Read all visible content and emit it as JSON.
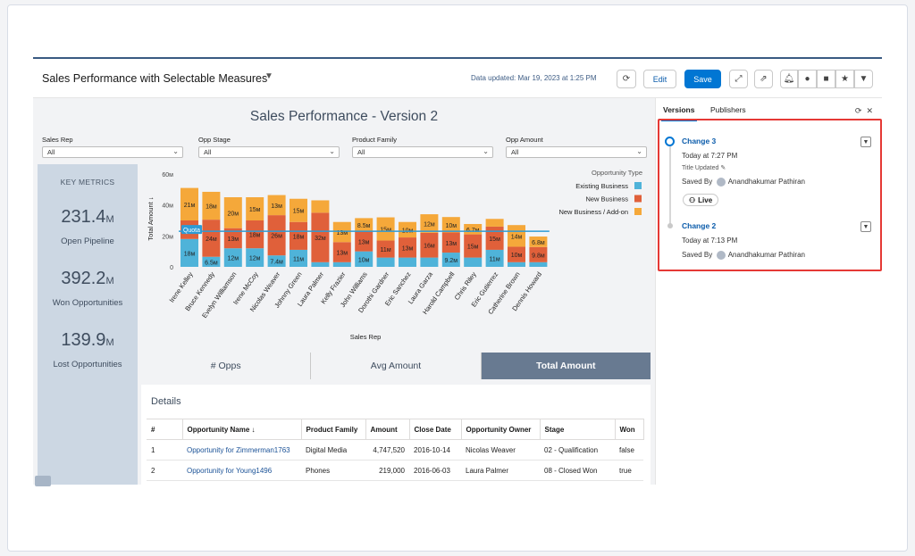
{
  "header": {
    "title": "Sales Performance with Selectable Measures",
    "updated": "Data updated: Mar 19, 2023 at 1:25 PM",
    "edit_label": "Edit",
    "save_label": "Save"
  },
  "dashboard": {
    "title": "Sales Performance - Version 2",
    "filters": [
      {
        "label": "Sales Rep",
        "value": "All"
      },
      {
        "label": "Opp Stage",
        "value": "All"
      },
      {
        "label": "Product Family",
        "value": "All"
      },
      {
        "label": "Opp Amount",
        "value": "All"
      }
    ],
    "metrics": {
      "heading": "KEY METRICS",
      "items": [
        {
          "value": "231.4",
          "unit": "M",
          "label": "Open Pipeline"
        },
        {
          "value": "392.2",
          "unit": "M",
          "label": "Won Opportunities"
        },
        {
          "value": "139.9",
          "unit": "M",
          "label": "Lost Opportunities"
        }
      ]
    },
    "tabs": [
      "# Opps",
      "Avg Amount",
      "Total Amount"
    ],
    "details": {
      "heading": "Details",
      "columns": [
        "#",
        "Opportunity Name ↓",
        "Product Family",
        "Amount",
        "Close Date",
        "Opportunity Owner",
        "Stage",
        "Won"
      ],
      "rows": [
        [
          "1",
          "Opportunity for Zimmerman1763",
          "Digital Media",
          "4,747,520",
          "2016-10-14",
          "Nicolas Weaver",
          "02 - Qualification",
          "false"
        ],
        [
          "2",
          "Opportunity for Young1496",
          "Phones",
          "219,000",
          "2016-06-03",
          "Laura Palmer",
          "08 - Closed Won",
          "true"
        ]
      ]
    }
  },
  "chart_data": {
    "type": "bar",
    "stacked": true,
    "ylabel": "Total Amount ↓",
    "xlabel": "Sales Rep",
    "ylim": [
      0,
      60
    ],
    "yticks": [
      "0",
      "20м",
      "40м",
      "60м"
    ],
    "legend_title": "Opportunity Type",
    "legend_position": "top-right",
    "quota_label": "Quota",
    "quota_value": 23,
    "categories": [
      "Irene Kelley",
      "Bruce Kennedy",
      "Evelyn Williamson",
      "Irene McCoy",
      "Nicolas Weaver",
      "Johnny Green",
      "Laura Palmer",
      "Kelly Frazier",
      "John Williams",
      "Dorothi Gardner",
      "Eric Sanchez",
      "Laura Garza",
      "Harold Campbell",
      "Chris Riley",
      "Eric Gutierrez",
      "Catherine Brown",
      "Dennis Howard"
    ],
    "series": [
      {
        "name": "Existing Business",
        "color": "#4fb3d9",
        "values": [
          18,
          6.5,
          12,
          12,
          7.4,
          11,
          3,
          3,
          10,
          6,
          6,
          6,
          9.2,
          6,
          11,
          3,
          3
        ],
        "labels": [
          "18м",
          "6.5м",
          "12м",
          "12м",
          "7.4м",
          "11м",
          "",
          "",
          "10м",
          "",
          "",
          "",
          "9.2м",
          "",
          "11м",
          "",
          ""
        ]
      },
      {
        "name": "New Business",
        "color": "#e0603a",
        "values": [
          12,
          24,
          13,
          18,
          26,
          18,
          32,
          13,
          13,
          11,
          13,
          16,
          13,
          15,
          15,
          10,
          9.8
        ],
        "labels": [
          "12м",
          "24м",
          "13м",
          "18м",
          "26м",
          "18м",
          "32м",
          "13м",
          "13м",
          "11м",
          "13м",
          "16м",
          "13м",
          "15м",
          "15м",
          "10м",
          "9.8м"
        ]
      },
      {
        "name": "New Business / Add-on",
        "color": "#f5a83a",
        "values": [
          21,
          18,
          20,
          15,
          13,
          15,
          8,
          13,
          8.5,
          15,
          10,
          12,
          10,
          6.7,
          5,
          14,
          6.8
        ],
        "labels": [
          "21м",
          "18м",
          "20м",
          "15м",
          "13м",
          "15м",
          "",
          "13м",
          "8.5м",
          "15м",
          "10м",
          "12м",
          "10м",
          "6.7м",
          "",
          "14м",
          "6.8м"
        ]
      }
    ]
  },
  "sidebar": {
    "tabs": [
      "Versions",
      "Publishers"
    ],
    "versions": [
      {
        "title": "Change 3",
        "time": "Today at 7:27 PM",
        "note": "Title Updated",
        "saved_by_label": "Saved By",
        "saved_by": "Anandhakumar Pathiran",
        "badge": "Live"
      },
      {
        "title": "Change 2",
        "time": "Today at 7:13 PM",
        "saved_by_label": "Saved By",
        "saved_by": "Anandhakumar Pathiran"
      }
    ]
  }
}
